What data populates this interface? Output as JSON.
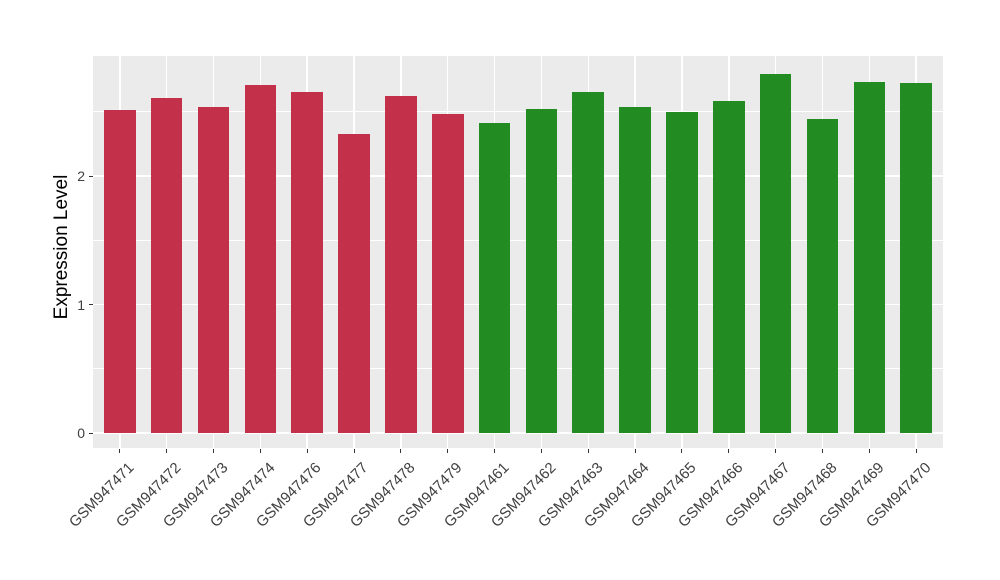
{
  "chart_data": {
    "type": "bar",
    "title": "",
    "xlabel": "",
    "ylabel": "Expression Level",
    "categories": [
      "GSM947471",
      "GSM947472",
      "GSM947473",
      "GSM947474",
      "GSM947476",
      "GSM947477",
      "GSM947478",
      "GSM947479",
      "GSM947461",
      "GSM947462",
      "GSM947463",
      "GSM947464",
      "GSM947465",
      "GSM947466",
      "GSM947467",
      "GSM947468",
      "GSM947469",
      "GSM947470"
    ],
    "values": [
      2.51,
      2.61,
      2.54,
      2.71,
      2.65,
      2.33,
      2.62,
      2.48,
      2.41,
      2.52,
      2.65,
      2.54,
      2.5,
      2.58,
      2.79,
      2.44,
      2.73,
      2.72
    ],
    "groups": [
      "red",
      "red",
      "red",
      "red",
      "red",
      "red",
      "red",
      "red",
      "green",
      "green",
      "green",
      "green",
      "green",
      "green",
      "green",
      "green",
      "green",
      "green"
    ],
    "group_colors": {
      "red": "#C2304A",
      "green": "#228B22"
    },
    "yticks": [
      0,
      1,
      2
    ],
    "yticks_minor": [
      0.5,
      1.5,
      2.5
    ],
    "ylim": [
      0,
      2.93
    ],
    "grid": true,
    "legend": "none",
    "x_label_angle": 45,
    "panel_bg": "#EBEBEB",
    "grid_color": "#FFFFFF",
    "tick_color": "#333333",
    "axis_text_color": "#404040"
  }
}
